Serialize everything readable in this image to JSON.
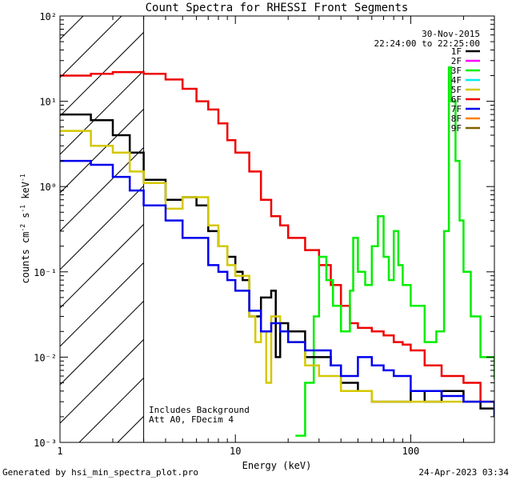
{
  "chart_data": {
    "type": "line",
    "title": "Count Spectra for RHESSI Front Segments",
    "xlabel": "Energy (keV)",
    "ylabel": "counts cm-2 s-1 keV-1",
    "xscale": "log",
    "yscale": "log",
    "xlim": [
      1,
      300
    ],
    "ylim": [
      0.001,
      100
    ],
    "x_ticks": [
      {
        "value": 1,
        "label": "1"
      },
      {
        "value": 10,
        "label": "10"
      },
      {
        "value": 100,
        "label": "100"
      }
    ],
    "y_ticks": [
      {
        "value": 0.001,
        "label": "10⁻³"
      },
      {
        "value": 0.01,
        "label": "10⁻²"
      },
      {
        "value": 0.1,
        "label": "10⁻¹"
      },
      {
        "value": 1,
        "label": "10⁰"
      },
      {
        "value": 10,
        "label": "10¹"
      },
      {
        "value": 100,
        "label": "10²"
      }
    ],
    "date": "30-Nov-2015",
    "time_range": "22:24:00 to 22:25:00",
    "hatched_region": {
      "x_from": 1,
      "x_to": 3
    },
    "annotations": [
      "Includes Background",
      "Att A0, FDecim 4"
    ],
    "legend": [
      {
        "name": "1F",
        "color": "#000000"
      },
      {
        "name": "2F",
        "color": "#ff00ff"
      },
      {
        "name": "3F",
        "color": "#00ee00"
      },
      {
        "name": "4F",
        "color": "#00eeee"
      },
      {
        "name": "5F",
        "color": "#d4c800"
      },
      {
        "name": "6F",
        "color": "#ee0000"
      },
      {
        "name": "7F",
        "color": "#0000ee"
      },
      {
        "name": "8F",
        "color": "#ff7f00"
      },
      {
        "name": "9F",
        "color": "#806000"
      }
    ],
    "series": [
      {
        "name": "6F",
        "color": "#ee0000",
        "points": [
          [
            1,
            20
          ],
          [
            1.5,
            21
          ],
          [
            2,
            22
          ],
          [
            3,
            21
          ],
          [
            4,
            18
          ],
          [
            5,
            14
          ],
          [
            6,
            10
          ],
          [
            7,
            8
          ],
          [
            8,
            5.5
          ],
          [
            9,
            3.5
          ],
          [
            10,
            2.5
          ],
          [
            12,
            1.5
          ],
          [
            14,
            0.7
          ],
          [
            16,
            0.45
          ],
          [
            18,
            0.35
          ],
          [
            20,
            0.25
          ],
          [
            25,
            0.18
          ],
          [
            30,
            0.12
          ],
          [
            35,
            0.07
          ],
          [
            40,
            0.04
          ],
          [
            45,
            0.025
          ],
          [
            50,
            0.022
          ],
          [
            60,
            0.02
          ],
          [
            70,
            0.018
          ],
          [
            80,
            0.015
          ],
          [
            90,
            0.014
          ],
          [
            100,
            0.012
          ],
          [
            120,
            0.008
          ],
          [
            150,
            0.006
          ],
          [
            200,
            0.005
          ],
          [
            250,
            0.003
          ],
          [
            300,
            0.0025
          ]
        ]
      },
      {
        "name": "3F",
        "color": "#00ee00",
        "points": [
          [
            22,
            0.0012
          ],
          [
            25,
            0.005
          ],
          [
            28,
            0.03
          ],
          [
            30,
            0.15
          ],
          [
            33,
            0.08
          ],
          [
            36,
            0.04
          ],
          [
            40,
            0.02
          ],
          [
            45,
            0.06
          ],
          [
            47,
            0.25
          ],
          [
            50,
            0.1
          ],
          [
            55,
            0.07
          ],
          [
            60,
            0.2
          ],
          [
            65,
            0.45
          ],
          [
            70,
            0.15
          ],
          [
            75,
            0.08
          ],
          [
            80,
            0.3
          ],
          [
            85,
            0.12
          ],
          [
            90,
            0.07
          ],
          [
            100,
            0.04
          ],
          [
            120,
            0.015
          ],
          [
            140,
            0.02
          ],
          [
            155,
            0.3
          ],
          [
            165,
            25
          ],
          [
            170,
            10
          ],
          [
            180,
            2
          ],
          [
            190,
            0.4
          ],
          [
            200,
            0.1
          ],
          [
            220,
            0.03
          ],
          [
            250,
            0.01
          ],
          [
            300,
            0.0055
          ]
        ]
      },
      {
        "name": "1F",
        "color": "#000000",
        "points": [
          [
            1,
            7
          ],
          [
            1.5,
            6
          ],
          [
            2,
            4
          ],
          [
            2.5,
            2.5
          ],
          [
            3,
            1.2
          ],
          [
            4,
            0.7
          ],
          [
            5,
            0.75
          ],
          [
            6,
            0.6
          ],
          [
            7,
            0.3
          ],
          [
            8,
            0.2
          ],
          [
            9,
            0.15
          ],
          [
            10,
            0.1
          ],
          [
            11,
            0.08
          ],
          [
            12,
            0.03
          ],
          [
            14,
            0.05
          ],
          [
            16,
            0.06
          ],
          [
            17,
            0.01
          ],
          [
            18,
            0.025
          ],
          [
            20,
            0.02
          ],
          [
            25,
            0.01
          ],
          [
            30,
            0.01
          ],
          [
            35,
            0.008
          ],
          [
            40,
            0.005
          ],
          [
            50,
            0.004
          ],
          [
            60,
            0.003
          ],
          [
            80,
            0.003
          ],
          [
            100,
            0.004
          ],
          [
            120,
            0.003
          ],
          [
            150,
            0.004
          ],
          [
            200,
            0.003
          ],
          [
            250,
            0.0025
          ],
          [
            300,
            0.002
          ]
        ]
      },
      {
        "name": "5F",
        "color": "#d4c800",
        "points": [
          [
            1,
            4.5
          ],
          [
            1.5,
            3
          ],
          [
            2,
            2.5
          ],
          [
            2.5,
            1.5
          ],
          [
            3,
            1.1
          ],
          [
            4,
            0.55
          ],
          [
            5,
            0.75
          ],
          [
            6,
            0.75
          ],
          [
            7,
            0.35
          ],
          [
            8,
            0.2
          ],
          [
            9,
            0.12
          ],
          [
            10,
            0.09
          ],
          [
            12,
            0.03
          ],
          [
            13,
            0.015
          ],
          [
            14,
            0.02
          ],
          [
            15,
            0.005
          ],
          [
            16,
            0.03
          ],
          [
            18,
            0.02
          ],
          [
            20,
            0.015
          ],
          [
            25,
            0.008
          ],
          [
            30,
            0.006
          ],
          [
            40,
            0.004
          ],
          [
            50,
            0.004
          ],
          [
            60,
            0.003
          ],
          [
            80,
            0.003
          ],
          [
            100,
            0.003
          ],
          [
            150,
            0.003
          ],
          [
            200,
            0.003
          ],
          [
            300,
            0.0025
          ]
        ]
      },
      {
        "name": "7F",
        "color": "#0000ee",
        "points": [
          [
            1,
            2
          ],
          [
            1.5,
            1.8
          ],
          [
            2,
            1.3
          ],
          [
            2.5,
            0.9
          ],
          [
            3,
            0.6
          ],
          [
            4,
            0.4
          ],
          [
            5,
            0.25
          ],
          [
            6,
            0.25
          ],
          [
            7,
            0.12
          ],
          [
            8,
            0.1
          ],
          [
            9,
            0.08
          ],
          [
            10,
            0.06
          ],
          [
            12,
            0.035
          ],
          [
            14,
            0.02
          ],
          [
            16,
            0.025
          ],
          [
            18,
            0.02
          ],
          [
            20,
            0.015
          ],
          [
            25,
            0.012
          ],
          [
            30,
            0.012
          ],
          [
            35,
            0.008
          ],
          [
            40,
            0.006
          ],
          [
            50,
            0.01
          ],
          [
            60,
            0.008
          ],
          [
            70,
            0.007
          ],
          [
            80,
            0.006
          ],
          [
            100,
            0.004
          ],
          [
            120,
            0.004
          ],
          [
            150,
            0.0035
          ],
          [
            200,
            0.003
          ],
          [
            300,
            0.002
          ]
        ]
      }
    ]
  },
  "footer": {
    "generated_by": "Generated by hsi_min_spectra_plot.pro",
    "generated_at": "24-Apr-2023 03:34"
  }
}
